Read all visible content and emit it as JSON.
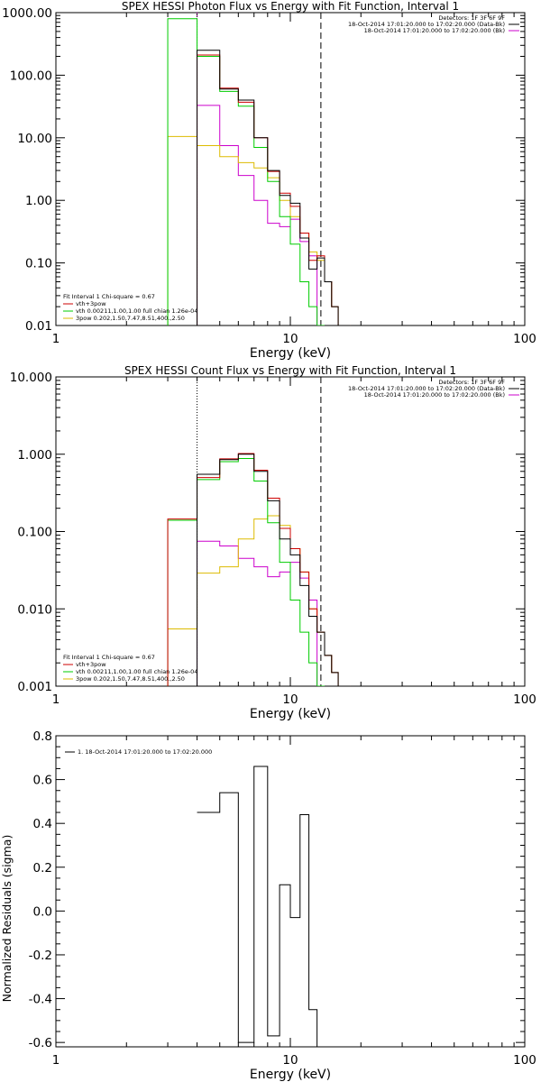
{
  "chart_data": [
    {
      "type": "line",
      "title": "SPEX HESSI Photon Flux vs Energy with Fit Function, Interval 1",
      "xlabel": "Energy (keV)",
      "ylabel": "",
      "xscale": "log",
      "yscale": "log",
      "xlim": [
        1,
        100
      ],
      "ylim": [
        0.01,
        1000
      ],
      "xticks": [
        "1",
        "10",
        "100"
      ],
      "yticks": [
        "0.01",
        "0.10",
        "1.00",
        "10.00",
        "100.00",
        "1000.00"
      ],
      "info_top_right": [
        "Detectors: 1F 3F 6F 9F",
        "18-Oct-2014 17:01:20.000 to 17:02:20.000 (Data-Bk)",
        "18-Oct-2014 17:01:20.000 to 17:02:20.000 (Bk)"
      ],
      "info_colors": [
        "#000000",
        "#cc00cc"
      ],
      "legend_lines": [
        "Fit Interval 1    Chi-square = 0.67",
        "vth+3pow",
        "vth 0.00211,1.00,1.00  full chian 1.26e-04",
        "3pow 0.202,1.50,7.47,8.51,400.,2.50"
      ],
      "legend_colors": [
        "#000000",
        "#cc0000",
        "#00cc00",
        "#ddbb00"
      ],
      "vlines": [
        {
          "x": 4.0,
          "style": "dotted-magenta"
        },
        {
          "x": 13.5,
          "style": "dashed"
        }
      ],
      "edges": [
        3,
        4,
        5,
        6,
        7,
        8,
        9,
        10,
        11,
        12,
        13,
        14,
        15,
        16,
        18
      ],
      "series": [
        {
          "name": "Data-Bk",
          "color": "#000000",
          "values": [
            null,
            250,
            60,
            40,
            10,
            3.0,
            1.2,
            0.9,
            0.25,
            0.08,
            0.12,
            0.05,
            0.02,
            0.01
          ]
        },
        {
          "name": "vth+3pow",
          "color": "#cc0000",
          "values": [
            null,
            210,
            62,
            37,
            10,
            2.9,
            1.3,
            0.8,
            0.3,
            0.11,
            0.13,
            0.05,
            0.02,
            0.01
          ]
        },
        {
          "name": "vth",
          "color": "#00cc00",
          "values": [
            800,
            200,
            55,
            32,
            7,
            2.0,
            0.55,
            0.2,
            0.05,
            0.02,
            0.01,
            null,
            null,
            null
          ]
        },
        {
          "name": "3pow",
          "color": "#ddbb00",
          "values": [
            10.5,
            7.5,
            5.0,
            4.0,
            3.3,
            2.3,
            1.0,
            0.55,
            0.3,
            0.15,
            0.11,
            0.05,
            0.02,
            0.01
          ]
        },
        {
          "name": "Bk",
          "color": "#cc00cc",
          "values": [
            null,
            33,
            7.5,
            2.5,
            1.0,
            0.43,
            0.38,
            0.5,
            0.22,
            0.13,
            null,
            null,
            null,
            null
          ]
        }
      ]
    },
    {
      "type": "line",
      "title": "SPEX HESSI Count Flux vs Energy with Fit Function, Interval 1",
      "xlabel": "Energy (keV)",
      "ylabel": "",
      "xscale": "log",
      "yscale": "log",
      "xlim": [
        1,
        100
      ],
      "ylim": [
        0.001,
        10
      ],
      "xticks": [
        "1",
        "10",
        "100"
      ],
      "yticks": [
        "0.001",
        "0.010",
        "0.100",
        "1.000",
        "10.000"
      ],
      "info_top_right": [
        "Detectors: 1F 3F 6F 9F",
        "18-Oct-2014 17:01:20.000 to 17:02:20.000 (Data-Bk)",
        "18-Oct-2014 17:01:20.000 to 17:02:20.000 (Bk)"
      ],
      "info_colors": [
        "#000000",
        "#cc00cc"
      ],
      "legend_lines": [
        "Fit Interval 1    Chi-square = 0.67",
        "vth+3pow",
        "vth 0.00211,1.00,1.00  full chian 1.26e-04",
        "3pow 0.202,1.50,7.47,8.51,400.,2.50"
      ],
      "legend_colors": [
        "#000000",
        "#cc0000",
        "#00cc00",
        "#ddbb00"
      ],
      "vlines": [
        {
          "x": 4.0,
          "style": "dotted"
        },
        {
          "x": 13.5,
          "style": "dashed"
        }
      ],
      "edges": [
        3,
        4,
        5,
        6,
        7,
        8,
        9,
        10,
        11,
        12,
        13,
        14,
        15,
        16,
        18
      ],
      "series": [
        {
          "name": "Data-Bk",
          "color": "#000000",
          "values": [
            null,
            0.55,
            0.85,
            1.0,
            0.6,
            0.25,
            0.08,
            0.05,
            0.02,
            0.008,
            0.005,
            0.0025,
            0.0015,
            0.001
          ]
        },
        {
          "name": "vth+3pow",
          "color": "#cc0000",
          "values": [
            0.145,
            0.5,
            0.87,
            1.02,
            0.62,
            0.27,
            0.11,
            0.06,
            0.03,
            0.01,
            0.005,
            0.0025,
            0.0015,
            0.001
          ]
        },
        {
          "name": "vth",
          "color": "#00cc00",
          "values": [
            0.14,
            0.47,
            0.8,
            0.88,
            0.45,
            0.13,
            0.04,
            0.013,
            0.005,
            0.002,
            0.001,
            null,
            null,
            null
          ]
        },
        {
          "name": "3pow",
          "color": "#ddbb00",
          "values": [
            0.0055,
            0.029,
            0.035,
            0.08,
            0.145,
            0.16,
            0.12,
            0.06,
            0.03,
            0.01,
            0.005,
            0.0025,
            0.0015,
            0.001
          ]
        },
        {
          "name": "Bk",
          "color": "#cc00cc",
          "values": [
            null,
            0.075,
            0.065,
            0.045,
            0.035,
            0.026,
            0.03,
            0.04,
            0.025,
            0.013,
            null,
            null,
            null,
            null
          ]
        }
      ]
    },
    {
      "type": "line",
      "title": "",
      "xlabel": "Energy (keV)",
      "ylabel": "Normalized Residuals (sigma)",
      "xscale": "log",
      "yscale": "linear",
      "xlim": [
        1,
        100
      ],
      "ylim": [
        -0.62,
        0.8
      ],
      "xticks": [
        "1",
        "10",
        "100"
      ],
      "yticks": [
        "-0.6",
        "-0.4",
        "-0.2",
        "0.0",
        "0.2",
        "0.4",
        "0.6",
        "0.8"
      ],
      "legend_lines": [
        "1. 18-Oct-2014 17:01:20.000 to 17:02:20.000"
      ],
      "legend_colors": [
        "#000000"
      ],
      "edges": [
        4,
        5,
        6,
        7,
        8,
        9,
        10,
        11,
        12,
        13,
        14
      ],
      "series": [
        {
          "name": "1. 18-Oct-2014 17:01:20.000 to 17:02:20.000",
          "color": "#000000",
          "values": [
            0.45,
            0.54,
            -0.6,
            0.66,
            -0.57,
            0.12,
            -0.03,
            0.44,
            -0.45,
            -0.62
          ]
        }
      ]
    }
  ]
}
